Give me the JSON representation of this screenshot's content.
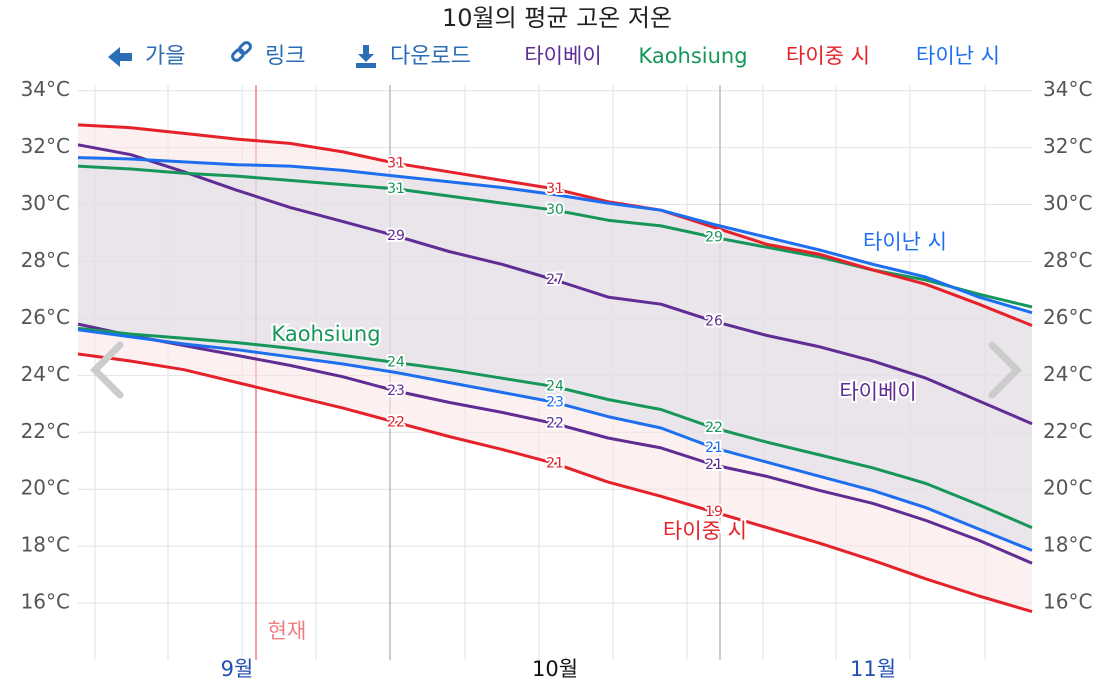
{
  "title": "10월의 평균 고온 저온",
  "toolbar": [
    "가을",
    "링크",
    "다운로드"
  ],
  "chart_data": {
    "type": "line",
    "now_label": "현재",
    "categories": [
      null,
      null,
      null,
      "9월",
      null,
      null,
      null,
      null,
      null,
      "10월",
      null,
      null,
      null,
      null,
      null,
      "11월",
      null,
      null,
      null
    ],
    "ylim": [
      14,
      34.2
    ],
    "yticks": [
      {
        "value": 16,
        "label": "16°C"
      },
      {
        "value": 18,
        "label": "18°C"
      },
      {
        "value": 20,
        "label": "20°C"
      },
      {
        "value": 22,
        "label": "22°C"
      },
      {
        "value": 24,
        "label": "24°C"
      },
      {
        "value": 26,
        "label": "26°C"
      },
      {
        "value": 28,
        "label": "28°C"
      },
      {
        "value": 30,
        "label": "30°C"
      },
      {
        "value": 32,
        "label": "32°C"
      },
      {
        "value": 34,
        "label": "34°C"
      }
    ],
    "grid": true,
    "series": [
      {
        "name": "타이베이",
        "color": "#5f2d94",
        "highs": {
          "values": [
            32.1,
            31.75,
            31.15,
            30.5,
            29.9,
            29.4,
            28.9,
            28.35,
            27.9,
            27.35,
            26.75,
            26.5,
            25.9,
            25.4,
            25.0,
            24.5,
            23.9,
            23.1,
            22.3
          ],
          "value_labels": [
            null,
            null,
            null,
            null,
            null,
            null,
            "29",
            null,
            null,
            "27",
            null,
            null,
            "26",
            null,
            null,
            null,
            null,
            null,
            null
          ]
        },
        "lows": {
          "values": [
            25.8,
            25.4,
            25.05,
            24.7,
            24.35,
            23.95,
            23.45,
            23.05,
            22.7,
            22.3,
            21.8,
            21.45,
            20.85,
            20.45,
            19.95,
            19.5,
            18.9,
            18.2,
            17.4
          ],
          "value_labels": [
            null,
            null,
            null,
            null,
            null,
            null,
            "23",
            null,
            null,
            "22",
            null,
            null,
            "21",
            null,
            null,
            null,
            null,
            null,
            null
          ]
        }
      },
      {
        "name": "Kaohsiung",
        "color": "#17965a",
        "highs": {
          "values": [
            31.35,
            31.25,
            31.1,
            31.0,
            30.85,
            30.7,
            30.55,
            30.3,
            30.05,
            29.8,
            29.45,
            29.25,
            28.85,
            28.5,
            28.15,
            27.7,
            27.35,
            26.85,
            26.4
          ],
          "value_labels": [
            null,
            null,
            null,
            null,
            null,
            null,
            "31",
            null,
            null,
            "30",
            null,
            null,
            "29",
            null,
            null,
            null,
            null,
            null,
            null
          ]
        },
        "lows": {
          "values": [
            25.65,
            25.45,
            25.3,
            25.15,
            24.95,
            24.7,
            24.45,
            24.2,
            23.9,
            23.6,
            23.15,
            22.8,
            22.15,
            21.65,
            21.2,
            20.75,
            20.2,
            19.45,
            18.65
          ],
          "value_labels": [
            null,
            null,
            null,
            null,
            null,
            null,
            "24",
            null,
            null,
            "24",
            null,
            null,
            "22",
            null,
            null,
            null,
            null,
            null,
            null
          ]
        }
      },
      {
        "name": "타이중 시",
        "color": "#e5222a",
        "highs": {
          "values": [
            32.8,
            32.7,
            32.5,
            32.3,
            32.15,
            31.85,
            31.45,
            31.15,
            30.85,
            30.55,
            30.1,
            29.8,
            29.2,
            28.6,
            28.25,
            27.7,
            27.2,
            26.5,
            25.75
          ],
          "value_labels": [
            null,
            null,
            null,
            null,
            null,
            null,
            "31",
            null,
            null,
            "31",
            null,
            null,
            null,
            null,
            null,
            null,
            null,
            null,
            null
          ]
        },
        "lows": {
          "values": [
            24.75,
            24.5,
            24.2,
            23.75,
            23.3,
            22.85,
            22.35,
            21.85,
            21.4,
            20.9,
            20.25,
            19.75,
            19.2,
            18.65,
            18.1,
            17.5,
            16.85,
            16.25,
            15.7
          ],
          "value_labels": [
            null,
            null,
            null,
            null,
            null,
            null,
            "22",
            null,
            null,
            "21",
            null,
            null,
            "19",
            null,
            null,
            null,
            null,
            null,
            null
          ]
        }
      },
      {
        "name": "타이난 시",
        "color": "#1e6ff0",
        "highs": {
          "values": [
            31.65,
            31.6,
            31.5,
            31.4,
            31.35,
            31.2,
            31.0,
            30.8,
            30.6,
            30.35,
            30.05,
            29.8,
            29.3,
            28.85,
            28.4,
            27.9,
            27.45,
            26.75,
            26.2
          ],
          "value_labels": [
            null,
            null,
            null,
            null,
            null,
            null,
            null,
            null,
            null,
            null,
            null,
            null,
            null,
            null,
            null,
            null,
            null,
            null,
            null
          ]
        },
        "lows": {
          "values": [
            25.6,
            25.35,
            25.1,
            24.9,
            24.65,
            24.4,
            24.1,
            23.75,
            23.4,
            23.05,
            22.55,
            22.15,
            21.45,
            20.95,
            20.45,
            19.95,
            19.35,
            18.6,
            17.85
          ],
          "value_labels": [
            null,
            null,
            null,
            null,
            null,
            null,
            null,
            null,
            null,
            "23",
            null,
            null,
            "21",
            null,
            null,
            null,
            null,
            null,
            null
          ]
        }
      }
    ]
  }
}
